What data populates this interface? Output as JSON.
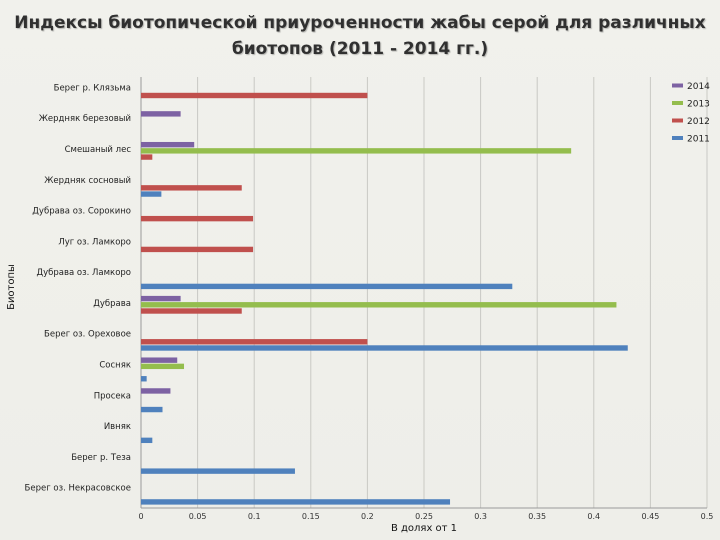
{
  "chart_data": {
    "type": "bar",
    "orientation": "horizontal",
    "title_line1": "Индексы биотопической приуроченности жабы серой для различных",
    "title_line2": "биотопов (2011 - 2014 гг.)",
    "xlabel": "В долях от 1",
    "ylabel": "Биотопы",
    "xlim": [
      0,
      0.5
    ],
    "xticks": [
      0,
      0.05,
      0.1,
      0.15,
      0.2,
      0.25,
      0.3,
      0.35,
      0.4,
      0.45,
      0.5
    ],
    "xtick_labels": [
      "0",
      "0.05",
      "0.1",
      "0.15",
      "0.2",
      "0.25",
      "0.3",
      "0.35",
      "0.4",
      "0.45",
      "0.5"
    ],
    "grid": true,
    "legend_position": "top-right",
    "categories": [
      "Берег р. Клязьма",
      "Жердняк березовый",
      "Смешаный лес",
      "Жердняк сосновый",
      "Дубрава оз. Сорокино",
      "Луг оз. Ламкоро",
      "Дубрава оз. Ламкоро",
      "Дубрава",
      "Берег оз. Ореховое",
      "Сосняк",
      "Просека",
      "Ивняк",
      "Берег р. Теза",
      "Берег оз. Некрасовское"
    ],
    "series": [
      {
        "name": "2014",
        "color": "#7d62a3",
        "values": [
          0,
          0.035,
          0.047,
          0,
          0,
          0,
          0,
          0.035,
          0,
          0.032,
          0.026,
          0,
          0,
          0
        ]
      },
      {
        "name": "2013",
        "color": "#94bd4d",
        "values": [
          0,
          0,
          0.38,
          0,
          0,
          0,
          0,
          0.42,
          0,
          0.038,
          0,
          0,
          0,
          0
        ]
      },
      {
        "name": "2012",
        "color": "#c0504d",
        "values": [
          0.2,
          0,
          0.01,
          0.089,
          0.099,
          0.099,
          0,
          0.089,
          0.2,
          0,
          0,
          0,
          0,
          0
        ]
      },
      {
        "name": "2011",
        "color": "#4f81bd",
        "values": [
          0,
          0,
          0,
          0.018,
          0,
          0,
          0.328,
          0,
          0.43,
          0.005,
          0.019,
          0.01,
          0.136,
          0.273
        ]
      }
    ]
  }
}
